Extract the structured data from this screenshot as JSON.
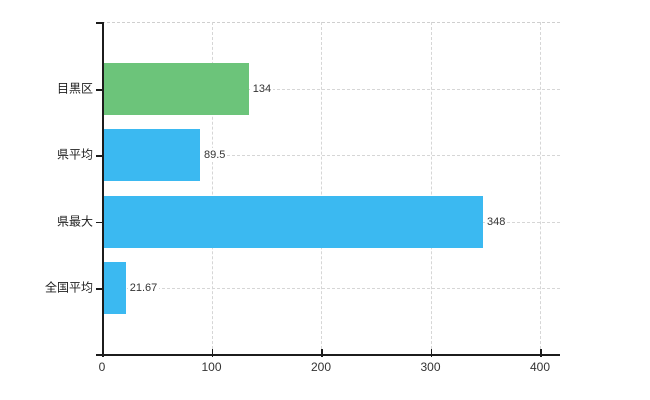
{
  "chart_data": {
    "type": "bar",
    "orientation": "horizontal",
    "title": "",
    "xlabel": "",
    "ylabel": "",
    "categories": [
      "目黒区",
      "県平均",
      "県最大",
      "全国平均"
    ],
    "values": [
      134,
      89.5,
      348,
      21.67
    ],
    "value_labels": [
      "134",
      "89.5",
      "348",
      "21.67"
    ],
    "bar_colors": [
      "#6cc47a",
      "#3bb9f1",
      "#3bb9f1",
      "#3bb9f1"
    ],
    "highlight_category": "目黒区",
    "x_ticks": [
      {
        "value": 0,
        "label": "0"
      },
      {
        "value": 100,
        "label": "100"
      },
      {
        "value": 200,
        "label": "200"
      },
      {
        "value": 300,
        "label": "300"
      },
      {
        "value": 400,
        "label": "400"
      }
    ],
    "xlim": [
      0,
      418
    ],
    "grid": true,
    "legend": false,
    "colors": {
      "highlight_bar": "#6cc47a",
      "default_bar": "#3bb9f1",
      "axis": "#1c1c1c",
      "grid": "#d6d6d6",
      "text": "#1f1f1f",
      "background": "#ffffff"
    }
  }
}
